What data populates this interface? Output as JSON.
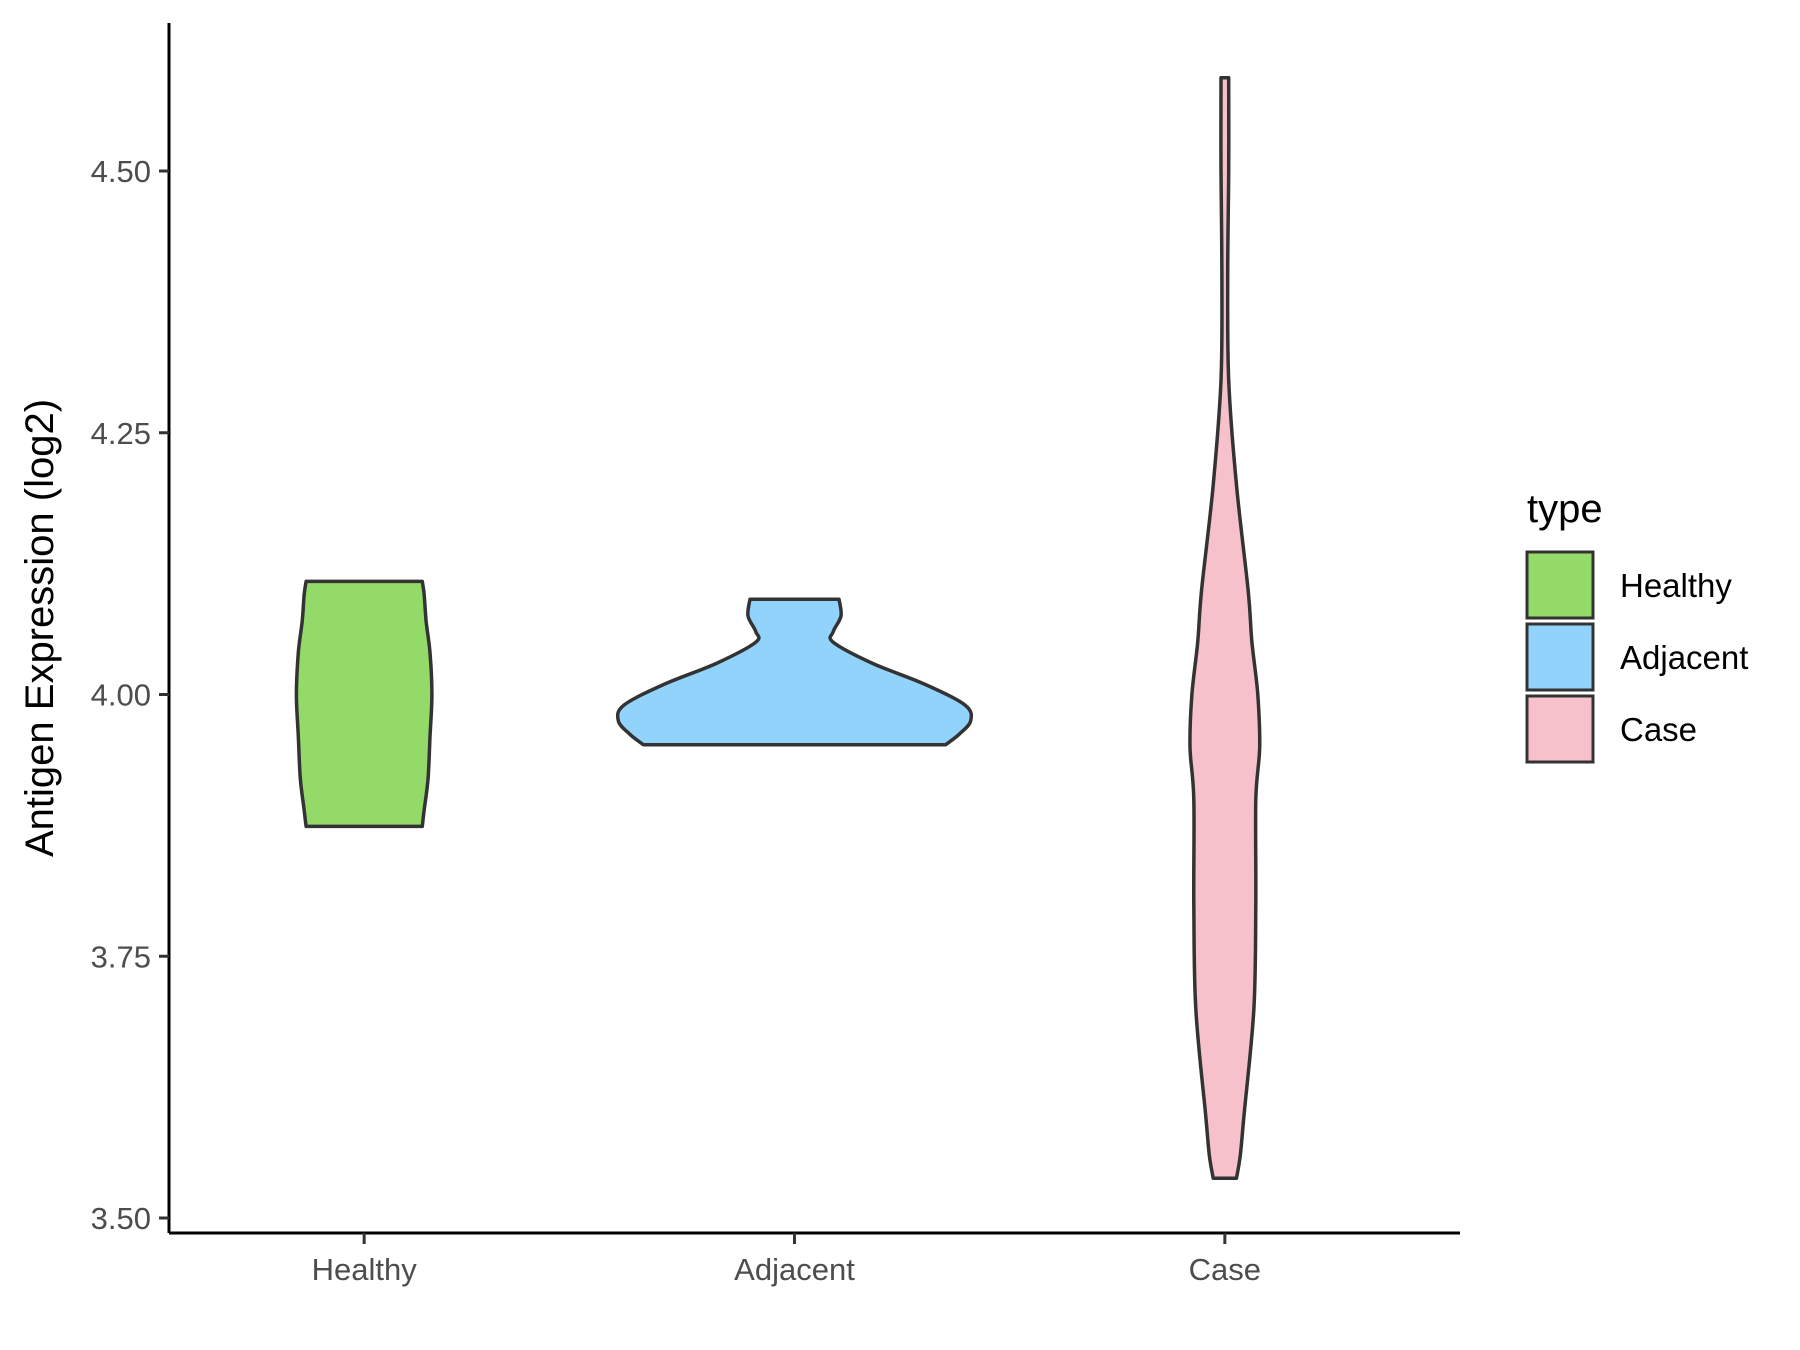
{
  "chart_data": {
    "type": "violin",
    "ylabel": "Antigen Expression (log2)",
    "xlabel": "",
    "ylim": [
      3.48,
      4.65
    ],
    "yticks": [
      3.5,
      3.75,
      4.0,
      4.25,
      4.5
    ],
    "ytick_labels": [
      "3.50",
      "3.75",
      "4.00",
      "4.25",
      "4.50"
    ],
    "categories": [
      "Healthy",
      "Adjacent",
      "Case"
    ],
    "legend": {
      "title": "type",
      "position": "right"
    },
    "grid": false,
    "series": [
      {
        "name": "Healthy",
        "color": "#93DA69",
        "min": 3.874,
        "max": 4.108,
        "density": [
          [
            3.874,
            0.3
          ],
          [
            3.89,
            0.31
          ],
          [
            3.92,
            0.33
          ],
          [
            3.96,
            0.34
          ],
          [
            4.0,
            0.35
          ],
          [
            4.04,
            0.34
          ],
          [
            4.07,
            0.32
          ],
          [
            4.095,
            0.31
          ],
          [
            4.108,
            0.3
          ]
        ]
      },
      {
        "name": "Adjacent",
        "color": "#92D3FC",
        "min": 3.952,
        "max": 4.091,
        "density": [
          [
            3.952,
            0.78
          ],
          [
            3.962,
            0.85
          ],
          [
            3.975,
            0.91
          ],
          [
            3.99,
            0.88
          ],
          [
            4.01,
            0.67
          ],
          [
            4.03,
            0.4
          ],
          [
            4.05,
            0.2
          ],
          [
            4.06,
            0.2
          ],
          [
            4.075,
            0.24
          ],
          [
            4.091,
            0.23
          ]
        ]
      },
      {
        "name": "Case",
        "color": "#F7C1CB",
        "min": 3.538,
        "max": 4.589,
        "density": [
          [
            3.538,
            0.06
          ],
          [
            3.56,
            0.08
          ],
          [
            3.6,
            0.1
          ],
          [
            3.7,
            0.15
          ],
          [
            3.8,
            0.16
          ],
          [
            3.9,
            0.16
          ],
          [
            3.95,
            0.18
          ],
          [
            4.0,
            0.17
          ],
          [
            4.05,
            0.14
          ],
          [
            4.1,
            0.12
          ],
          [
            4.2,
            0.06
          ],
          [
            4.3,
            0.02
          ],
          [
            4.4,
            0.015
          ],
          [
            4.5,
            0.02
          ],
          [
            4.589,
            0.02
          ]
        ]
      }
    ]
  }
}
